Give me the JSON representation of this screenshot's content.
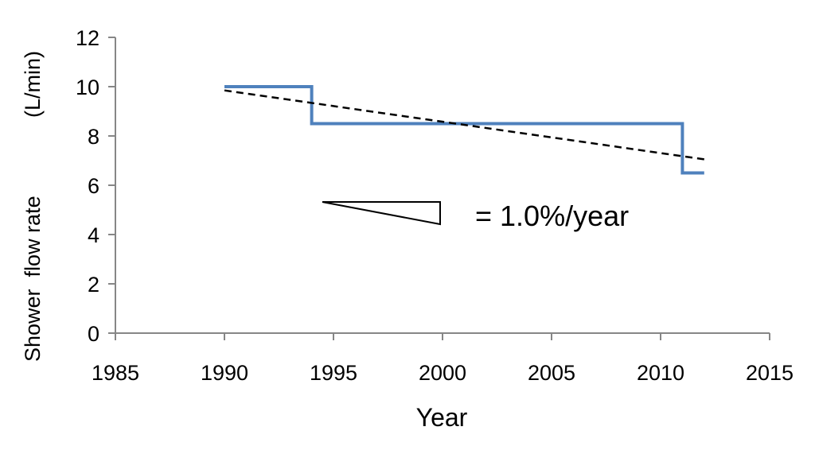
{
  "chart_data": {
    "type": "line",
    "title": "",
    "xlabel": "Year",
    "ylabel_parts": [
      "Shower  flow rate",
      "(L/min)"
    ],
    "xlim": [
      1985,
      2015
    ],
    "ylim": [
      0,
      12
    ],
    "x_ticks": [
      1985,
      1990,
      1995,
      2000,
      2005,
      2010,
      2015
    ],
    "y_ticks": [
      0,
      2,
      4,
      6,
      8,
      10,
      12
    ],
    "grid": false,
    "legend": "none",
    "series": [
      {
        "style": "solid-step",
        "color": "#4f81bd",
        "points": [
          [
            1990,
            10
          ],
          [
            1994,
            10
          ],
          [
            1994,
            8.5
          ],
          [
            2011,
            8.5
          ],
          [
            2011,
            6.5
          ],
          [
            2012,
            6.5
          ]
        ]
      },
      {
        "style": "dashed-trend",
        "color": "#000000",
        "points": [
          [
            1990,
            9.85
          ],
          [
            2012,
            7.05
          ]
        ]
      }
    ],
    "annotation": {
      "text": "= 1.0%/year"
    }
  }
}
